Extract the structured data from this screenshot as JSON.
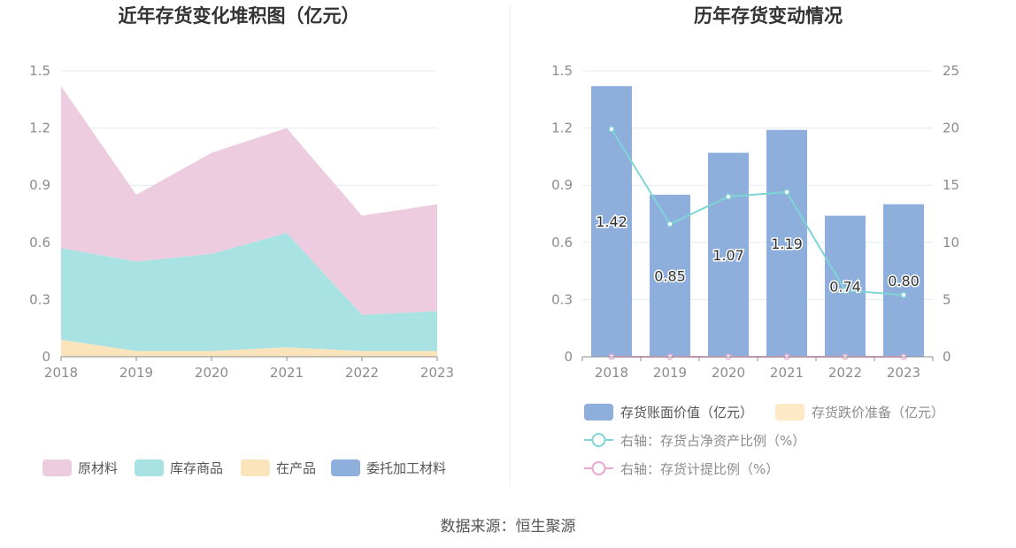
{
  "source": "数据来源：恒生聚源",
  "colors": {
    "raw_material": "#eeccdf",
    "inventory_goods": "#a9e2e3",
    "wip": "#fbe3bb",
    "consigned": "#8eaedb",
    "bar": "#8eaedb",
    "impairment": "#fde9c5",
    "ratio_line": "#7fd4d6",
    "provision_line": "#e8a6d0",
    "grid": "#e6e9f4",
    "axis": "#8c8c8c"
  },
  "chart_data": [
    {
      "type": "area",
      "stacked": true,
      "title": "近年存货变化堆积图（亿元）",
      "x": [
        "2018",
        "2019",
        "2020",
        "2021",
        "2022",
        "2023"
      ],
      "y_ticks": [
        "0",
        "0.3",
        "0.6",
        "0.9",
        "1.2",
        "1.5"
      ],
      "ylim": [
        0,
        1.5
      ],
      "grid": true,
      "legend_position": "bottom",
      "series": [
        {
          "name": "委托加工材料",
          "values": [
            0,
            0,
            0,
            0,
            0,
            0
          ],
          "color_key": "consigned"
        },
        {
          "name": "在产品",
          "values": [
            0.09,
            0.03,
            0.03,
            0.05,
            0.03,
            0.03
          ],
          "color_key": "wip"
        },
        {
          "name": "库存商品",
          "values": [
            0.48,
            0.47,
            0.51,
            0.6,
            0.19,
            0.21
          ],
          "color_key": "inventory_goods"
        },
        {
          "name": "原材料",
          "values": [
            0.85,
            0.35,
            0.53,
            0.55,
            0.52,
            0.56
          ],
          "color_key": "raw_material"
        }
      ],
      "legend": [
        "原材料",
        "库存商品",
        "在产品",
        "委托加工材料"
      ]
    },
    {
      "type": "bar",
      "title": "历年存货变动情况",
      "x": [
        "2018",
        "2019",
        "2020",
        "2021",
        "2022",
        "2023"
      ],
      "y_ticks_left": [
        "0",
        "0.3",
        "0.6",
        "0.9",
        "1.2",
        "1.5"
      ],
      "ylim_left": [
        0,
        1.5
      ],
      "y_ticks_right": [
        "0",
        "5",
        "10",
        "15",
        "20",
        "25"
      ],
      "ylim_right": [
        0,
        25
      ],
      "grid": true,
      "legend_position": "bottom",
      "bars": {
        "name": "存货账面价值（亿元）",
        "values": [
          1.42,
          0.85,
          1.07,
          1.19,
          0.74,
          0.8
        ],
        "labels": [
          "1.42",
          "0.85",
          "1.07",
          "1.19",
          "0.74",
          "0.80"
        ]
      },
      "impairment": {
        "name": "存货跌价准备（亿元）",
        "values": [
          0,
          0,
          0,
          0,
          0,
          0
        ]
      },
      "lines": [
        {
          "name": "右轴：存货占净资产比例（%）",
          "axis": "right",
          "values": [
            19.9,
            11.6,
            14.0,
            14.4,
            5.8,
            5.4
          ],
          "color_key": "ratio_line"
        },
        {
          "name": "右轴：存货计提比例（%）",
          "axis": "right",
          "values": [
            0,
            0,
            0,
            0,
            0,
            0
          ],
          "color_key": "provision_line"
        }
      ]
    }
  ]
}
